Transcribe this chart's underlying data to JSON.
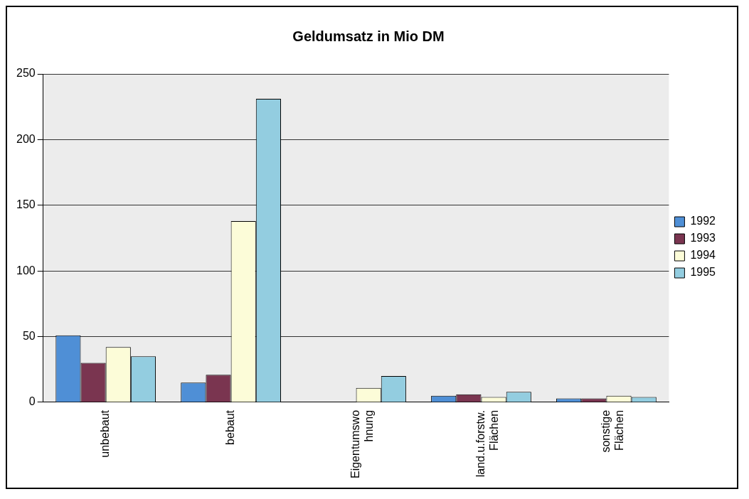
{
  "chart_data": {
    "type": "bar",
    "title": "Geldumsatz in Mio DM",
    "categories": [
      "unbebaut",
      "bebaut",
      "Eigentumswo\nhnung",
      "land.u.forstw.\nFlächen",
      "sonstige\nFlächen"
    ],
    "series": [
      {
        "name": "1992",
        "color": "#4f8fd6",
        "values": [
          51,
          15,
          0,
          5,
          3
        ]
      },
      {
        "name": "1993",
        "color": "#7a3550",
        "values": [
          30,
          21,
          0,
          6,
          3
        ]
      },
      {
        "name": "1994",
        "color": "#fcfcd8",
        "values": [
          42,
          138,
          11,
          4,
          5
        ]
      },
      {
        "name": "1995",
        "color": "#93cde0",
        "values": [
          35,
          231,
          20,
          8,
          4
        ]
      }
    ],
    "ylim": [
      0,
      250
    ],
    "yticks": [
      0,
      50,
      100,
      150,
      200,
      250
    ],
    "grid": "y",
    "legend": "right"
  }
}
